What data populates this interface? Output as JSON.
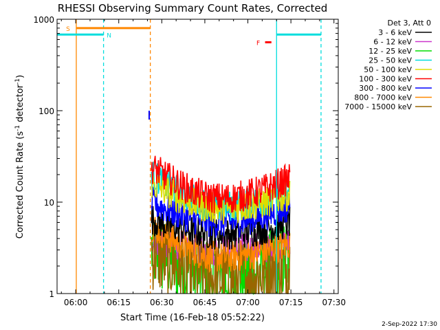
{
  "chart_data": {
    "type": "line",
    "title": "RHESSI Observing Summary Count Rates, Corrected",
    "xlabel": "Start Time (16-Feb-18 05:52:22)",
    "ylabel_main": "Corrected Count Rate (s",
    "ylabel_sup1": "-1",
    "ylabel_mid": " detector",
    "ylabel_sup2": "-1",
    "ylabel_end": ")",
    "yscale": "log",
    "ylim": [
      1,
      1000
    ],
    "xlim_minutes_of_day": [
      353.5,
      451.5
    ],
    "xticks": [
      {
        "label": "06:00",
        "minute": 360
      },
      {
        "label": "06:15",
        "minute": 375
      },
      {
        "label": "06:30",
        "minute": 390
      },
      {
        "label": "06:45",
        "minute": 405
      },
      {
        "label": "07:00",
        "minute": 420
      },
      {
        "label": "07:15",
        "minute": 435
      },
      {
        "label": "07:30",
        "minute": 450
      }
    ],
    "yticks": [
      {
        "label": "1",
        "value": 1
      },
      {
        "label": "10",
        "value": 10
      },
      {
        "label": "100",
        "value": 100
      },
      {
        "label": "1000",
        "value": 1000
      }
    ],
    "legend_title": "Det 3, Att 0",
    "legend_position": "top-right",
    "series": [
      {
        "name": "3 - 6 keV",
        "color": "#000000",
        "level_start": 6.5,
        "level_mid": 4.5,
        "level_end": 6.0
      },
      {
        "name": "6 - 12 keV",
        "color": "#cc33cc",
        "level_start": 4.0,
        "level_mid": 3.0,
        "level_end": 3.5
      },
      {
        "name": "12 - 25 keV",
        "color": "#00dd00",
        "level_start": 3.0,
        "level_mid": 1.4,
        "level_end": 2.5
      },
      {
        "name": "25 - 50 keV",
        "color": "#00dddd",
        "level_start": 20,
        "level_mid": 9.0,
        "level_end": 13
      },
      {
        "name": "50 - 100 keV",
        "color": "#dddd00",
        "level_start": 16,
        "level_mid": 8.5,
        "level_end": 12
      },
      {
        "name": "100 - 300 keV",
        "color": "#ff0000",
        "level_start": 24,
        "level_mid": 11,
        "level_end": 18
      },
      {
        "name": "300 - 800 keV",
        "color": "#0000ff",
        "level_start": 10,
        "level_mid": 6.0,
        "level_end": 9.0
      },
      {
        "name": "800 - 7000 keV",
        "color": "#ff8800",
        "level_start": 5.5,
        "level_mid": 2.5,
        "level_end": 3.5
      },
      {
        "name": "7000 - 15000 keV",
        "color": "#996600",
        "level_start": 3.0,
        "level_mid": 1.5,
        "level_end": 2.0
      }
    ],
    "data_start_minute": 386.4,
    "data_end_minute": 434.6,
    "initial_spike": {
      "minute": 385.6,
      "low": 80,
      "high": 100,
      "color": "#0000ff"
    },
    "annotations": [
      {
        "label": "S",
        "color": "#ff8800",
        "start": 360.2,
        "end": 386.0,
        "level": 800
      },
      {
        "label": "N",
        "color": "#00dddd",
        "start": 353.5,
        "end": 369.7,
        "level": 680
      },
      {
        "label": "F",
        "color": "#ff0000",
        "start": 426.0,
        "end": 428.2,
        "level": 560
      },
      {
        "label": "",
        "color": "#00dddd",
        "start": 430.0,
        "end": 445.5,
        "level": 680
      }
    ],
    "vlines": [
      {
        "minute": 360.2,
        "color": "#ff8800",
        "style": "solid"
      },
      {
        "minute": 369.7,
        "color": "#00dddd",
        "style": "dashed"
      },
      {
        "minute": 386.0,
        "color": "#ff8800",
        "style": "dashed"
      },
      {
        "minute": 430.0,
        "color": "#00dddd",
        "style": "solid"
      },
      {
        "minute": 445.5,
        "color": "#00dddd",
        "style": "dashed"
      }
    ]
  },
  "footer_date": "2-Sep-2022 17:30"
}
